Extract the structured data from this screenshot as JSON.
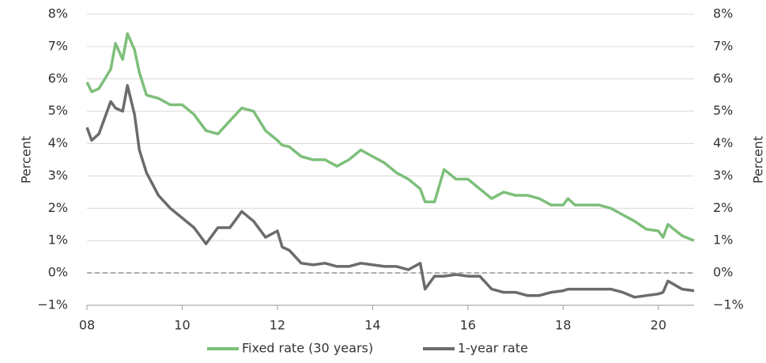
{
  "chart_data": {
    "type": "line",
    "ylabel": "Percent",
    "y2label": "Percent",
    "x": [
      8,
      8.1,
      8.25,
      8.5,
      8.6,
      8.75,
      8.85,
      9,
      9.1,
      9.25,
      9.5,
      9.75,
      10,
      10.25,
      10.5,
      10.75,
      11,
      11.25,
      11.5,
      11.75,
      12,
      12.1,
      12.25,
      12.5,
      12.75,
      13,
      13.25,
      13.5,
      13.75,
      14,
      14.25,
      14.5,
      14.75,
      15,
      15.1,
      15.3,
      15.5,
      15.75,
      16,
      16.25,
      16.5,
      16.75,
      17,
      17.25,
      17.5,
      17.75,
      18,
      18.1,
      18.25,
      18.5,
      18.75,
      19,
      19.25,
      19.5,
      19.75,
      20,
      20.1,
      20.2,
      20.5,
      20.75
    ],
    "series": [
      {
        "name": "Fixed rate (30 years)",
        "color": "#7dbf7a",
        "values": [
          5.9,
          5.6,
          5.7,
          6.3,
          7.1,
          6.6,
          7.4,
          6.9,
          6.2,
          5.5,
          5.4,
          5.2,
          5.2,
          4.9,
          4.4,
          4.3,
          4.7,
          5.1,
          5.0,
          4.4,
          4.1,
          3.95,
          3.9,
          3.6,
          3.5,
          3.5,
          3.3,
          3.5,
          3.8,
          3.6,
          3.4,
          3.1,
          2.9,
          2.6,
          2.2,
          2.2,
          3.2,
          2.9,
          2.9,
          2.6,
          2.3,
          2.5,
          2.4,
          2.4,
          2.3,
          2.1,
          2.1,
          2.3,
          2.1,
          2.1,
          2.1,
          2.0,
          1.8,
          1.6,
          1.35,
          1.3,
          1.1,
          1.5,
          1.15,
          1.0
        ]
      },
      {
        "name": "1-year rate",
        "color": "#6b6b6b",
        "values": [
          4.5,
          4.1,
          4.3,
          5.3,
          5.1,
          5.0,
          5.8,
          4.9,
          3.8,
          3.1,
          2.4,
          2.0,
          1.7,
          1.4,
          0.9,
          1.4,
          1.4,
          1.9,
          1.6,
          1.1,
          1.3,
          0.8,
          0.7,
          0.3,
          0.25,
          0.3,
          0.2,
          0.2,
          0.3,
          0.25,
          0.2,
          0.2,
          0.1,
          0.3,
          -0.5,
          -0.1,
          -0.1,
          -0.05,
          -0.1,
          -0.1,
          -0.5,
          -0.6,
          -0.6,
          -0.7,
          -0.7,
          -0.6,
          -0.55,
          -0.5,
          -0.5,
          -0.5,
          -0.5,
          -0.5,
          -0.6,
          -0.75,
          -0.7,
          -0.65,
          -0.6,
          -0.25,
          -0.5,
          -0.55
        ]
      }
    ],
    "xlim": [
      8,
      20.75
    ],
    "xticks": [
      {
        "value": 8,
        "label": "08"
      },
      10,
      12,
      14,
      16,
      18,
      20
    ],
    "ylim": [
      -1,
      8
    ],
    "yticks": [
      {
        "value": -1,
        "label": "−1%"
      },
      {
        "value": 0,
        "label": "0%"
      },
      {
        "value": 1,
        "label": "1%"
      },
      {
        "value": 2,
        "label": "2%"
      },
      {
        "value": 3,
        "label": "3%"
      },
      {
        "value": 4,
        "label": "4%"
      },
      {
        "value": 5,
        "label": "5%"
      },
      {
        "value": 6,
        "label": "6%"
      },
      {
        "value": 7,
        "label": "7%"
      },
      {
        "value": 8,
        "label": "8%"
      }
    ],
    "hline": 0,
    "grid": true
  }
}
